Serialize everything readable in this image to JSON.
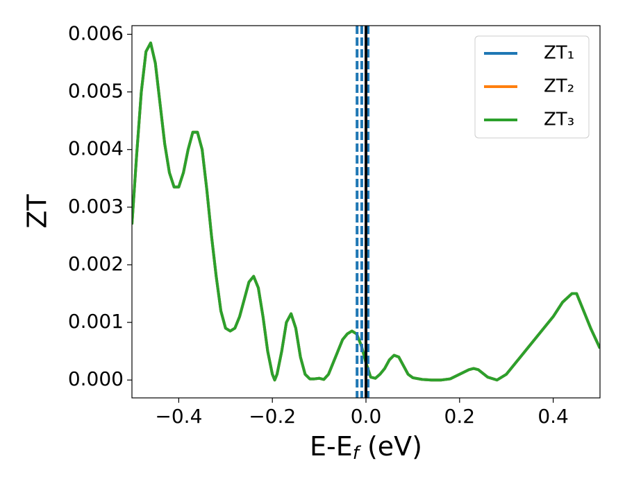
{
  "chart_data": {
    "type": "line",
    "xlabel": {
      "main": "E-E",
      "sub": "f",
      "rest": " (eV)"
    },
    "ylabel": "ZT",
    "x": [
      -0.5,
      -0.49,
      -0.48,
      -0.47,
      -0.46,
      -0.45,
      -0.44,
      -0.43,
      -0.42,
      -0.41,
      -0.4,
      -0.39,
      -0.38,
      -0.37,
      -0.36,
      -0.35,
      -0.34,
      -0.33,
      -0.32,
      -0.31,
      -0.3,
      -0.29,
      -0.28,
      -0.27,
      -0.26,
      -0.25,
      -0.24,
      -0.23,
      -0.22,
      -0.21,
      -0.2,
      -0.195,
      -0.19,
      -0.18,
      -0.17,
      -0.16,
      -0.15,
      -0.14,
      -0.13,
      -0.12,
      -0.11,
      -0.1,
      -0.09,
      -0.08,
      -0.07,
      -0.06,
      -0.05,
      -0.04,
      -0.03,
      -0.02,
      -0.01,
      0.0,
      0.01,
      0.02,
      0.03,
      0.04,
      0.05,
      0.06,
      0.07,
      0.08,
      0.09,
      0.1,
      0.12,
      0.14,
      0.16,
      0.18,
      0.2,
      0.22,
      0.23,
      0.24,
      0.26,
      0.28,
      0.3,
      0.32,
      0.34,
      0.36,
      0.38,
      0.4,
      0.42,
      0.44,
      0.45,
      0.46,
      0.48,
      0.5
    ],
    "series": [
      {
        "name": "ZT₁",
        "color": "#1f77b4",
        "values": [
          0.0027,
          0.0039,
          0.005,
          0.0057,
          0.00585,
          0.0055,
          0.0048,
          0.0041,
          0.0036,
          0.00335,
          0.00335,
          0.0036,
          0.004,
          0.0043,
          0.0043,
          0.004,
          0.0033,
          0.0025,
          0.0018,
          0.0012,
          0.0009,
          0.00085,
          0.0009,
          0.0011,
          0.0014,
          0.0017,
          0.0018,
          0.0016,
          0.0011,
          0.0005,
          0.0001,
          0.0,
          0.0001,
          0.0005,
          0.001,
          0.00115,
          0.0009,
          0.0004,
          0.0001,
          2e-05,
          2e-05,
          3e-05,
          1e-05,
          0.0001,
          0.0003,
          0.0005,
          0.0007,
          0.0008,
          0.00085,
          0.0008,
          0.0006,
          0.0003,
          5e-05,
          3e-05,
          0.0001,
          0.0002,
          0.00035,
          0.00043,
          0.0004,
          0.00025,
          0.0001,
          4e-05,
          1e-05,
          0.0,
          0.0,
          2e-05,
          0.0001,
          0.00018,
          0.0002,
          0.00018,
          5e-05,
          0.0,
          0.0001,
          0.0003,
          0.0005,
          0.0007,
          0.0009,
          0.0011,
          0.00135,
          0.0015,
          0.0015,
          0.0013,
          0.0009,
          0.00055
        ]
      },
      {
        "name": "ZT₂",
        "color": "#ff7f0e",
        "values": [
          0.0027,
          0.0039,
          0.005,
          0.0057,
          0.00585,
          0.0055,
          0.0048,
          0.0041,
          0.0036,
          0.00335,
          0.00335,
          0.0036,
          0.004,
          0.0043,
          0.0043,
          0.004,
          0.0033,
          0.0025,
          0.0018,
          0.0012,
          0.0009,
          0.00085,
          0.0009,
          0.0011,
          0.0014,
          0.0017,
          0.0018,
          0.0016,
          0.0011,
          0.0005,
          0.0001,
          0.0,
          0.0001,
          0.0005,
          0.001,
          0.00115,
          0.0009,
          0.0004,
          0.0001,
          2e-05,
          2e-05,
          3e-05,
          1e-05,
          0.0001,
          0.0003,
          0.0005,
          0.0007,
          0.0008,
          0.00085,
          0.0008,
          0.0006,
          0.0003,
          5e-05,
          3e-05,
          0.0001,
          0.0002,
          0.00035,
          0.00043,
          0.0004,
          0.00025,
          0.0001,
          4e-05,
          1e-05,
          0.0,
          0.0,
          2e-05,
          0.0001,
          0.00018,
          0.0002,
          0.00018,
          5e-05,
          0.0,
          0.0001,
          0.0003,
          0.0005,
          0.0007,
          0.0009,
          0.0011,
          0.00135,
          0.0015,
          0.0015,
          0.0013,
          0.0009,
          0.00055
        ]
      },
      {
        "name": "ZT₃",
        "color": "#2ca02c",
        "values": [
          0.0027,
          0.0039,
          0.005,
          0.0057,
          0.00585,
          0.0055,
          0.0048,
          0.0041,
          0.0036,
          0.00335,
          0.00335,
          0.0036,
          0.004,
          0.0043,
          0.0043,
          0.004,
          0.0033,
          0.0025,
          0.0018,
          0.0012,
          0.0009,
          0.00085,
          0.0009,
          0.0011,
          0.0014,
          0.0017,
          0.0018,
          0.0016,
          0.0011,
          0.0005,
          0.0001,
          0.0,
          0.0001,
          0.0005,
          0.001,
          0.00115,
          0.0009,
          0.0004,
          0.0001,
          2e-05,
          2e-05,
          3e-05,
          1e-05,
          0.0001,
          0.0003,
          0.0005,
          0.0007,
          0.0008,
          0.00085,
          0.0008,
          0.0006,
          0.0003,
          5e-05,
          3e-05,
          0.0001,
          0.0002,
          0.00035,
          0.00043,
          0.0004,
          0.00025,
          0.0001,
          4e-05,
          1e-05,
          0.0,
          0.0,
          2e-05,
          0.0001,
          0.00018,
          0.0002,
          0.00018,
          5e-05,
          0.0,
          0.0001,
          0.0003,
          0.0005,
          0.0007,
          0.0009,
          0.0011,
          0.00135,
          0.0015,
          0.0015,
          0.0013,
          0.0009,
          0.00055
        ]
      }
    ],
    "vlines": [
      {
        "x": -0.019,
        "color": "#1f77b4",
        "dashed": true
      },
      {
        "x": -0.009,
        "color": "#1f77b4",
        "dashed": true
      },
      {
        "x": 0.0045,
        "color": "#1f77b4",
        "dashed": true
      },
      {
        "x": 0.0,
        "color": "#000000",
        "dashed": false
      }
    ],
    "xlim": [
      -0.5,
      0.5
    ],
    "ylim": [
      -0.00031,
      0.00615
    ],
    "xticks": [
      {
        "value": -0.4,
        "label": "−0.4"
      },
      {
        "value": -0.2,
        "label": "−0.2"
      },
      {
        "value": 0.0,
        "label": "0.0"
      },
      0.2,
      0.4
    ],
    "yticks": [
      {
        "value": 0,
        "label": "0.000"
      },
      {
        "value": 0.001,
        "label": "0.001"
      },
      {
        "value": 0.002,
        "label": "0.002"
      },
      {
        "value": 0.003,
        "label": "0.003"
      },
      {
        "value": 0.004,
        "label": "0.004"
      },
      {
        "value": 0.005,
        "label": "0.005"
      },
      {
        "value": 0.006,
        "label": "0.006"
      }
    ],
    "grid": false,
    "legend": "upper right"
  }
}
